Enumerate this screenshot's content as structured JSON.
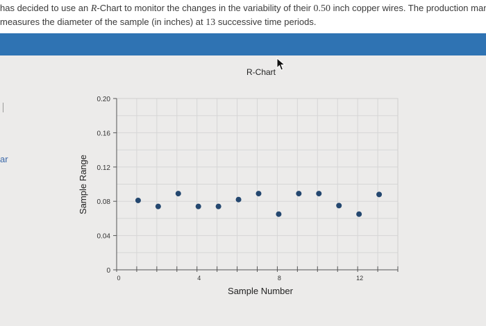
{
  "problem": {
    "line1_a": "has decided to use an ",
    "line1_r": "R",
    "line1_b": "-Chart to monitor the changes in the variability of their ",
    "line1_num": "0.50",
    "line1_c": " inch copper wires. The production mana",
    "line2_a": "measures the diameter of the sample (in inches) at ",
    "line2_num": "13",
    "line2_b": " successive time periods."
  },
  "left_fragment": "ar",
  "colors": {
    "banner": "#2f73b3",
    "point": "#24476f",
    "grid": "#d6d6d6"
  },
  "cursor_icon": "mouse-pointer-icon",
  "chart_data": {
    "type": "scatter",
    "title": "R-Chart",
    "xlabel": "Sample Number",
    "ylabel": "Sample Range",
    "xlim": [
      0,
      14
    ],
    "ylim": [
      0,
      0.2
    ],
    "x_ticks": [
      0,
      4,
      8,
      12
    ],
    "y_ticks": [
      0,
      0.04,
      0.08,
      0.12,
      0.16,
      0.2
    ],
    "y_tick_labels": [
      "0",
      "0.04",
      "0.08",
      "0.12",
      "0.16",
      "0.20"
    ],
    "x_tick_labels": [
      "0",
      "4",
      "8",
      "12"
    ],
    "grid": true,
    "x": [
      1,
      2,
      3,
      4,
      5,
      6,
      7,
      8,
      9,
      10,
      11,
      12,
      13
    ],
    "y": [
      0.081,
      0.074,
      0.089,
      0.074,
      0.074,
      0.082,
      0.089,
      0.065,
      0.089,
      0.089,
      0.075,
      0.065,
      0.088
    ]
  }
}
